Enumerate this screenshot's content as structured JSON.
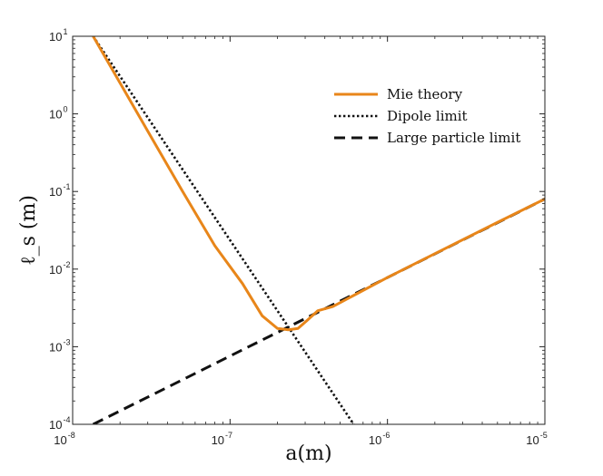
{
  "chart_data": {
    "type": "line",
    "x_scale": "log",
    "y_scale": "log",
    "xlabel": "a(m)",
    "ylabel": "ℓ_s (m)",
    "xlim": [
      1e-08,
      1e-05
    ],
    "ylim": [
      0.0001,
      10
    ],
    "x_ticks": [
      {
        "base": "10",
        "exp": "-8",
        "value": 1e-08
      },
      {
        "base": "10",
        "exp": "-7",
        "value": 1e-07
      },
      {
        "base": "10",
        "exp": "-6",
        "value": 1e-06
      },
      {
        "base": "10",
        "exp": "-5",
        "value": 1e-05
      }
    ],
    "y_ticks": [
      {
        "base": "10",
        "exp": "-4",
        "value": 0.0001
      },
      {
        "base": "10",
        "exp": "-3",
        "value": 0.001
      },
      {
        "base": "10",
        "exp": "-2",
        "value": 0.01
      },
      {
        "base": "10",
        "exp": "-1",
        "value": 0.1
      },
      {
        "base": "10",
        "exp": "0",
        "value": 1
      },
      {
        "base": "10",
        "exp": "1",
        "value": 10
      }
    ],
    "grid": false,
    "legend_position": "top-right",
    "series": [
      {
        "name": "Mie theory",
        "style": "solid",
        "color": "#e8861a",
        "x": [
          1.35e-08,
          2e-08,
          3e-08,
          5e-08,
          8e-08,
          1.2e-07,
          1.6e-07,
          2e-07,
          2.35e-07,
          2.7e-07,
          3.1e-07,
          3.6e-07,
          4.5e-07,
          6e-07,
          1e-06,
          2e-06,
          5e-06,
          1e-05
        ],
        "y": [
          10,
          2.5,
          0.6,
          0.1,
          0.02,
          0.0065,
          0.0025,
          0.00172,
          0.00165,
          0.00172,
          0.0022,
          0.0029,
          0.0033,
          0.0045,
          0.0078,
          0.0158,
          0.04,
          0.08
        ]
      },
      {
        "name": "Dipole limit",
        "style": "dotted",
        "color": "#111111",
        "x": [
          1.35e-08,
          6.1e-07
        ],
        "y": [
          10,
          0.0001
        ]
      },
      {
        "name": "Large particle limit",
        "style": "dashed",
        "color": "#111111",
        "x": [
          1.35e-08,
          1e-05
        ],
        "y": [
          0.0001,
          0.08
        ]
      }
    ]
  }
}
